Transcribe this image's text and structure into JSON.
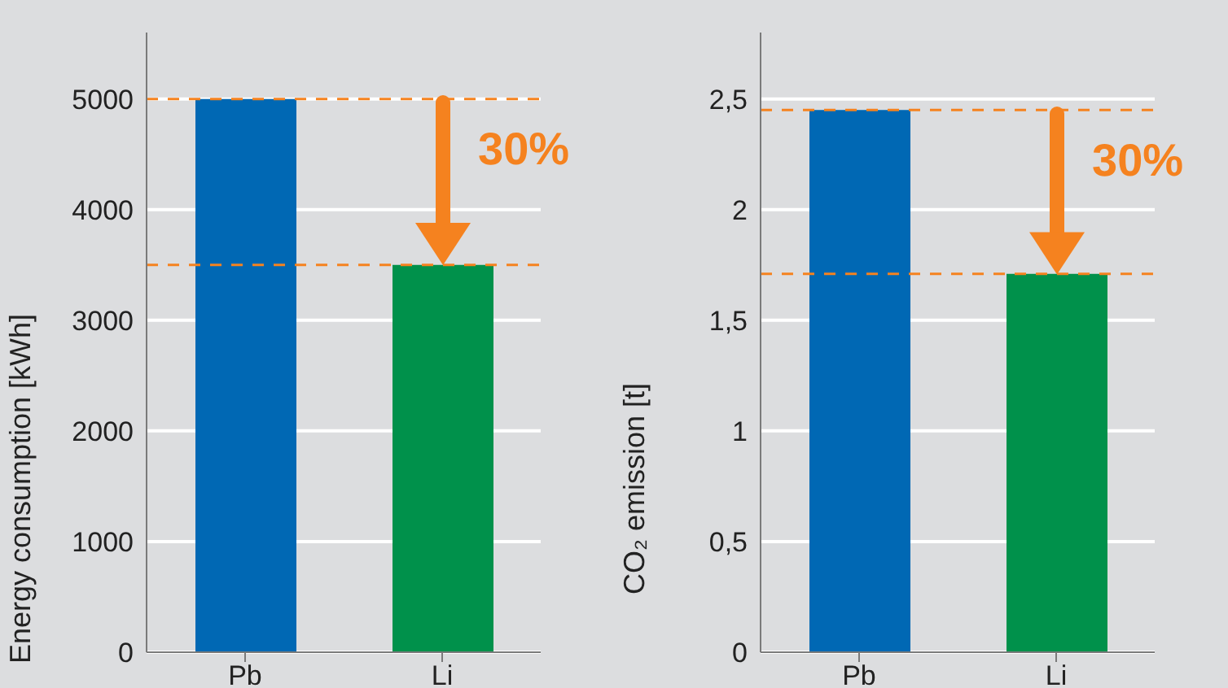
{
  "chart_data": [
    {
      "type": "bar",
      "categories": [
        "Pb",
        "Li"
      ],
      "values": [
        5000,
        3500
      ],
      "colors": [
        "#0068b4",
        "#00914b"
      ],
      "ylabel": "Energy consumption [kWh]",
      "ylim": [
        0,
        5600
      ],
      "yticks": [
        0,
        1000,
        2000,
        3000,
        4000,
        5000
      ],
      "grid": "y",
      "ref_lines": [
        {
          "axis": "y",
          "value": 5000,
          "color": "#f5821f",
          "line_style": "dashed"
        },
        {
          "axis": "y",
          "value": 3500,
          "color": "#f5821f",
          "line_style": "dashed"
        }
      ],
      "annotations": [
        "30%"
      ]
    },
    {
      "type": "bar",
      "categories": [
        "Pb",
        "Li"
      ],
      "values": [
        2.45,
        1.71
      ],
      "colors": [
        "#0068b4",
        "#00914b"
      ],
      "ylabel": "CO₂ emission [t]",
      "ylim": [
        0,
        2.8
      ],
      "yticks": [
        0,
        {
          "value": 0.5,
          "label": "0,5"
        },
        1,
        {
          "value": 1.5,
          "label": "1,5"
        },
        2,
        {
          "value": 2.5,
          "label": "2,5"
        }
      ],
      "grid": "y",
      "ref_lines": [
        {
          "axis": "y",
          "value": 2.45,
          "color": "#f5821f",
          "line_style": "dashed"
        },
        {
          "axis": "y",
          "value": 1.71,
          "color": "#f5821f",
          "line_style": "dashed"
        }
      ],
      "annotations": [
        "30%"
      ]
    }
  ]
}
